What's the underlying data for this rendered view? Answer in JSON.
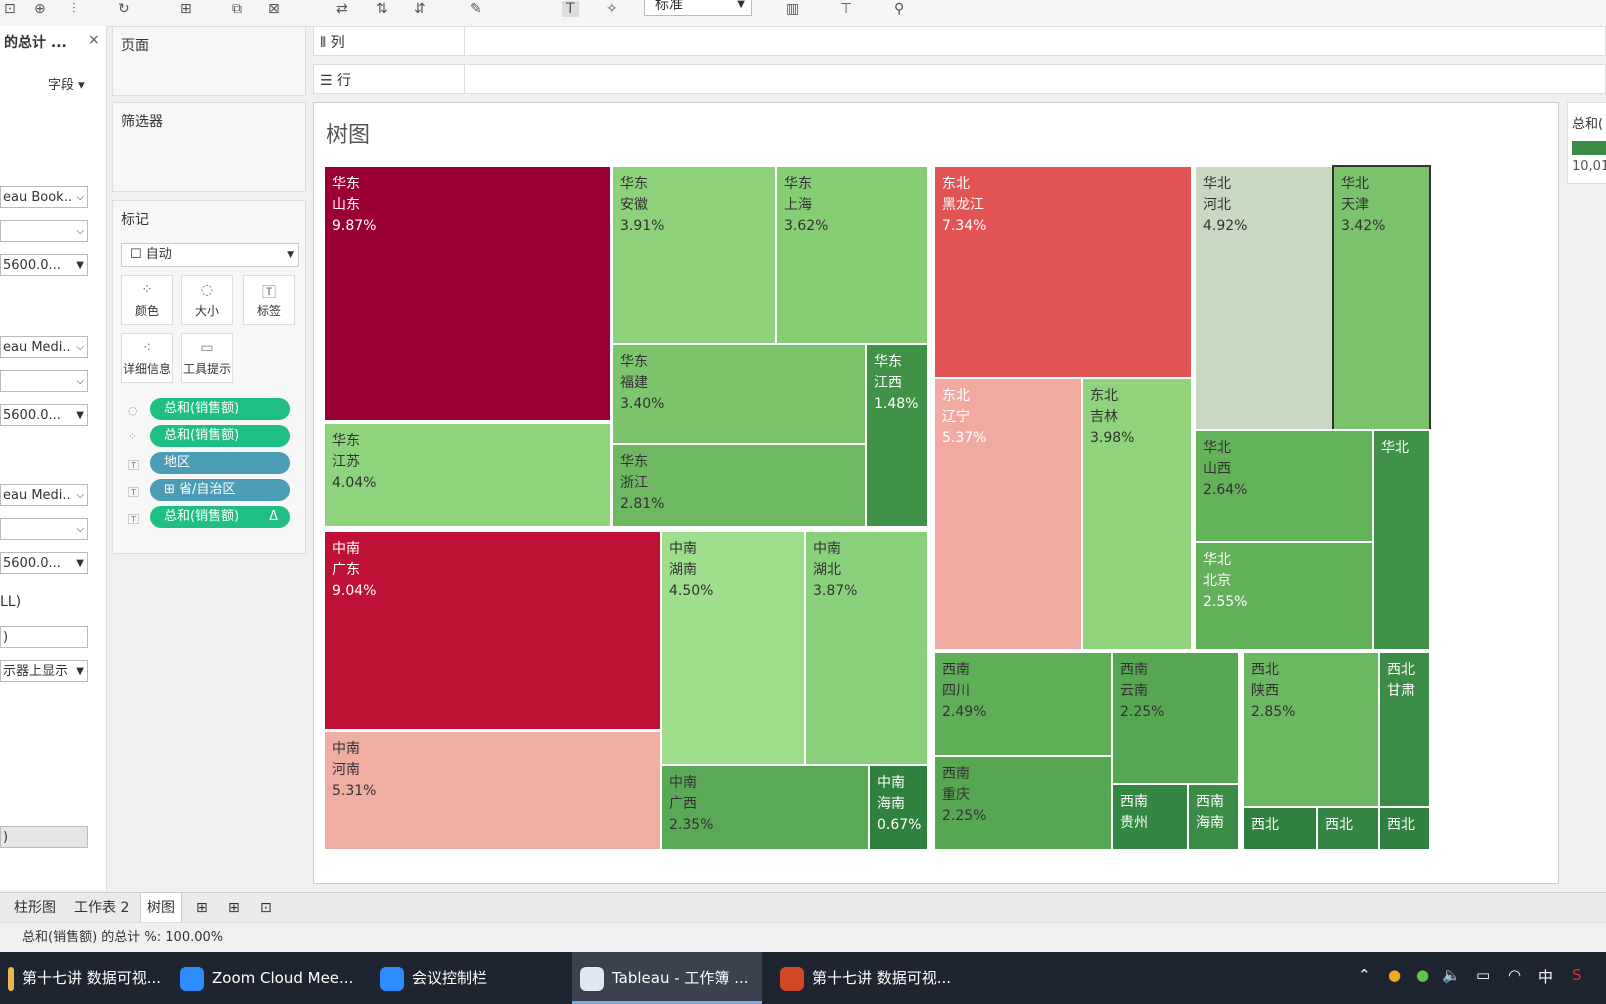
{
  "toolbar": {
    "zoom_value": "标准"
  },
  "data_pane": {
    "title": "的总计 ...",
    "fields_label": "字段",
    "dropdowns": [
      "eau Book..",
      "",
      "5600.0...",
      "eau Medi..",
      "",
      "5600.0...",
      "eau Medi..",
      "",
      "5600.0..."
    ],
    "text_ll": "LL)",
    "input_value": ")",
    "show_dropdown": "示器上显示",
    "bottom_value": ")"
  },
  "shelves": {
    "pages": "页面",
    "columns": "列",
    "rows": "行",
    "filters": "筛选器"
  },
  "marks": {
    "title": "标记",
    "type_value": "自动",
    "buttons": [
      "颜色",
      "大小",
      "标签",
      "详细信息",
      "工具提示"
    ],
    "pills": [
      {
        "label": "总和(销售额)",
        "color": "#1fbf84"
      },
      {
        "label": "总和(销售额)",
        "color": "#1fbf84"
      },
      {
        "label": "地区",
        "color": "#4b9db5"
      },
      {
        "label": "⊞ 省/自治区",
        "color": "#4b9db5"
      },
      {
        "label": "总和(销售额)",
        "color": "#1fbf84",
        "suffix": "Δ"
      }
    ]
  },
  "view": {
    "title": "树图"
  },
  "legend": {
    "title": "总和(",
    "value": "10,01"
  },
  "chart_data": {
    "type": "treemap",
    "title": "树图",
    "value_label": "总和(销售额) 的总计 %",
    "tiles": [
      {
        "region": "华东",
        "province": "山东",
        "pct": "9.87%",
        "color": "#9a0036"
      },
      {
        "region": "华东",
        "province": "江苏",
        "pct": "4.04%",
        "color": "#8dd47c"
      },
      {
        "region": "华东",
        "province": "安徽",
        "pct": "3.91%",
        "color": "#8dd27a"
      },
      {
        "region": "华东",
        "province": "上海",
        "pct": "3.62%",
        "color": "#86ce74"
      },
      {
        "region": "华东",
        "province": "福建",
        "pct": "3.40%",
        "color": "#7cc56c"
      },
      {
        "region": "华东",
        "province": "浙江",
        "pct": "2.81%",
        "color": "#6db860"
      },
      {
        "region": "华东",
        "province": "江西",
        "pct": "1.48%",
        "color": "#3f9247"
      },
      {
        "region": "中南",
        "province": "广东",
        "pct": "9.04%",
        "color": "#bf1036"
      },
      {
        "region": "中南",
        "province": "河南",
        "pct": "5.31%",
        "color": "#efada4"
      },
      {
        "region": "中南",
        "province": "湖南",
        "pct": "4.50%",
        "color": "#9ede8c"
      },
      {
        "region": "中南",
        "province": "湖北",
        "pct": "3.87%",
        "color": "#89d07a"
      },
      {
        "region": "中南",
        "province": "广西",
        "pct": "2.35%",
        "color": "#5aa956"
      },
      {
        "region": "中南",
        "province": "海南",
        "pct": "0.67%",
        "color": "#2f8140"
      },
      {
        "region": "东北",
        "province": "黑龙江",
        "pct": "7.34%",
        "color": "#e25454"
      },
      {
        "region": "东北",
        "province": "辽宁",
        "pct": "5.37%",
        "color": "#f1aaa2"
      },
      {
        "region": "东北",
        "province": "吉林",
        "pct": "3.98%",
        "color": "#8fd47c"
      },
      {
        "region": "华北",
        "province": "河北",
        "pct": "4.92%",
        "color": "#c9d8c0"
      },
      {
        "region": "华北",
        "province": "天津",
        "pct": "3.42%",
        "color": "#7ac26c"
      },
      {
        "region": "华北",
        "province": "山西",
        "pct": "2.64%",
        "color": "#64b25a"
      },
      {
        "region": "华北",
        "province": "北京",
        "pct": "2.55%",
        "color": "#62b05a"
      },
      {
        "region": "华北",
        "province": "",
        "pct": "",
        "color": "#3f9247"
      },
      {
        "region": "西南",
        "province": "四川",
        "pct": "2.49%",
        "color": "#5fae58"
      },
      {
        "region": "西南",
        "province": "重庆",
        "pct": "2.25%",
        "color": "#56a752"
      },
      {
        "region": "西南",
        "province": "云南",
        "pct": "2.25%",
        "color": "#56a752"
      },
      {
        "region": "西南",
        "province": "贵州",
        "pct": "",
        "color": "#348643"
      },
      {
        "region": "西南",
        "province": "海南",
        "pct": "",
        "color": "#3a8c46"
      },
      {
        "region": "西北",
        "province": "陕西",
        "pct": "2.85%",
        "color": "#6cb862"
      },
      {
        "region": "西北",
        "province": "甘肃",
        "pct": "",
        "color": "#3a8c46"
      },
      {
        "region": "西北",
        "province": "",
        "pct": "",
        "color": "#2f8140"
      },
      {
        "region": "西北",
        "province": "",
        "pct": "",
        "color": "#348643"
      },
      {
        "region": "西北",
        "province": "",
        "pct": "",
        "color": "#2f8140"
      }
    ]
  },
  "tabs": [
    "柱形图",
    "工作表 2",
    "树图"
  ],
  "status": "总和(销售额) 的总计 %: 100.00%",
  "taskbar": {
    "items": [
      {
        "label": "第十七讲 数据可视...",
        "color": "#e8b84a"
      },
      {
        "label": "Zoom Cloud Mee...",
        "color": "#2d8cff"
      },
      {
        "label": "会议控制栏",
        "color": "#2d8cff"
      },
      {
        "label": "Tableau - 工作簿 ...",
        "color": "#dfe7f0"
      },
      {
        "label": "第十七讲 数据可视...",
        "color": "#d24726"
      }
    ],
    "ime": "中"
  }
}
